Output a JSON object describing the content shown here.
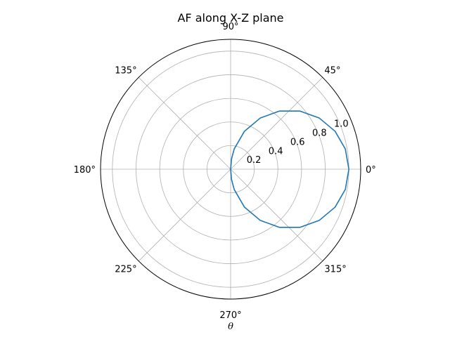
{
  "chart_data": {
    "type": "line",
    "projection": "polar",
    "title": "AF along X-Z plane",
    "xlabel": "θ",
    "ylabel": "",
    "theta_tick_labels": [
      "0°",
      "45°",
      "90°",
      "135°",
      "180°",
      "225°",
      "270°",
      "315°"
    ],
    "theta_ticks_deg": [
      0,
      45,
      90,
      135,
      180,
      225,
      270,
      315
    ],
    "r_tick_labels": [
      "0.2",
      "0.4",
      "0.6",
      "0.8",
      "1.0"
    ],
    "r_ticks": [
      0.2,
      0.4,
      0.6,
      0.8,
      1.0
    ],
    "rlim": [
      0,
      1.1
    ],
    "grid": true,
    "legend": "none",
    "series": [
      {
        "color": "#1f77b4",
        "theta_deg": [
          0,
          10,
          20,
          30,
          40,
          50,
          60,
          70,
          80,
          85,
          90,
          270,
          275,
          280,
          290,
          300,
          310,
          320,
          330,
          340,
          350,
          360
        ],
        "r": [
          1.0,
          0.985,
          0.94,
          0.866,
          0.766,
          0.643,
          0.5,
          0.342,
          0.174,
          0.087,
          0.0,
          0.0,
          0.087,
          0.174,
          0.342,
          0.5,
          0.643,
          0.766,
          0.866,
          0.94,
          0.985,
          1.0
        ]
      }
    ]
  }
}
